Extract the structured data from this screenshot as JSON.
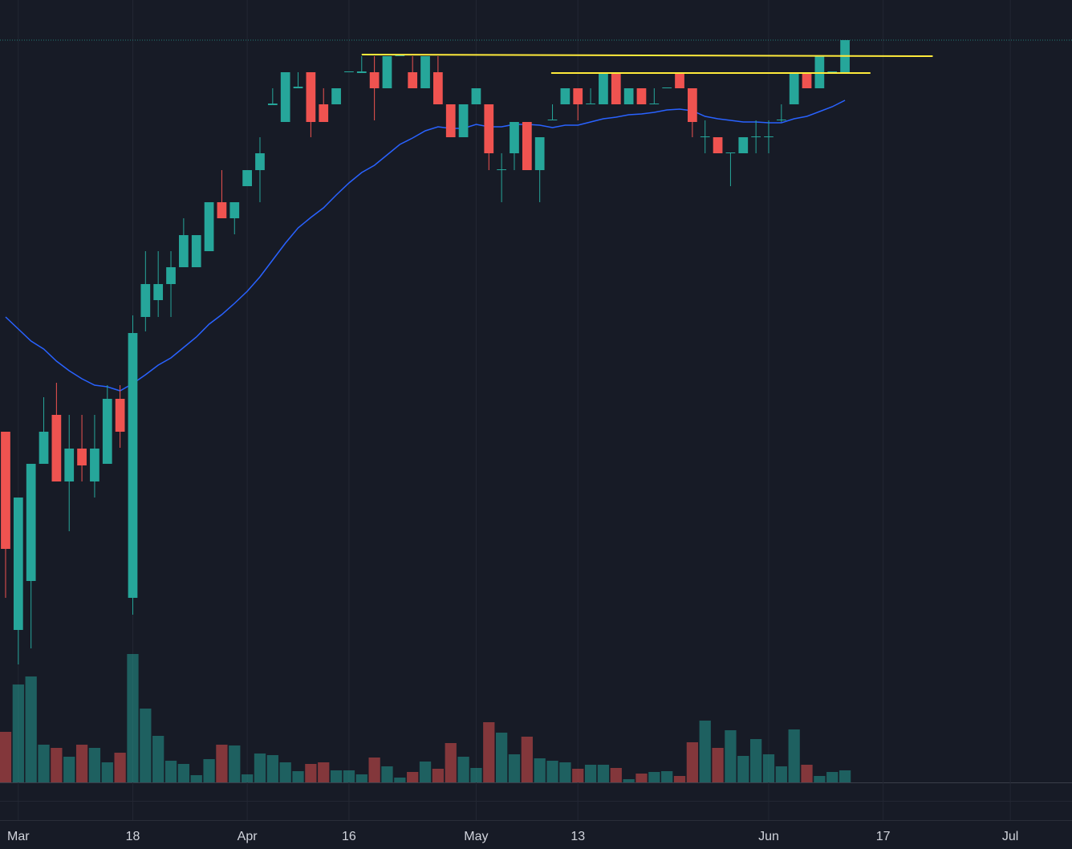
{
  "chart_data": {
    "type": "candlestick",
    "xlim": [
      -0.44,
      83.85
    ],
    "ylim": [
      0,
      1000
    ],
    "vlim": [
      0,
      200
    ],
    "xticks": [
      {
        "value": 1,
        "label": "Mar"
      },
      {
        "value": 10,
        "label": "18"
      },
      {
        "value": 19,
        "label": "Apr"
      },
      {
        "value": 27,
        "label": "16"
      },
      {
        "value": 37,
        "label": "May"
      },
      {
        "value": 45,
        "label": "13"
      },
      {
        "value": 60,
        "label": "Jun"
      },
      {
        "value": 69,
        "label": "17"
      },
      {
        "value": 79,
        "label": "Jul"
      }
    ],
    "up_color": "#26a69a",
    "down_color": "#ef5350",
    "open": [
      462,
      215,
      276,
      422,
      483,
      400,
      441,
      400,
      422,
      503,
      255,
      605,
      626,
      646,
      667,
      667,
      687,
      748,
      728,
      768,
      788,
      869,
      848,
      890,
      910,
      870,
      870,
      910,
      909,
      910,
      890,
      930,
      910,
      890,
      910,
      870,
      829,
      870,
      870,
      788,
      809,
      848,
      788,
      850,
      870,
      890,
      870,
      870,
      910,
      870,
      890,
      870,
      890,
      910,
      890,
      829,
      829,
      809,
      809,
      829,
      829,
      850,
      870,
      910,
      890,
      910,
      910
    ],
    "high": [
      462,
      380,
      422,
      505,
      523,
      483,
      483,
      483,
      520,
      520,
      607,
      687,
      687,
      687,
      728,
      707,
      748,
      788,
      748,
      788,
      829,
      890,
      910,
      910,
      910,
      890,
      890,
      911,
      930,
      930,
      930,
      931,
      930,
      930,
      930,
      870,
      870,
      890,
      870,
      809,
      848,
      848,
      829,
      870,
      890,
      890,
      890,
      910,
      910,
      890,
      890,
      890,
      891,
      910,
      890,
      850,
      829,
      810,
      829,
      850,
      850,
      870,
      910,
      910,
      930,
      911,
      950
    ],
    "low": [
      255,
      172,
      192,
      422,
      400,
      338,
      400,
      380,
      422,
      442,
      234,
      587,
      605,
      605,
      667,
      667,
      687,
      728,
      708,
      768,
      748,
      869,
      848,
      890,
      829,
      848,
      870,
      910,
      909,
      850,
      890,
      930,
      890,
      890,
      870,
      829,
      829,
      870,
      788,
      748,
      788,
      788,
      748,
      850,
      870,
      850,
      870,
      870,
      870,
      870,
      870,
      870,
      890,
      890,
      829,
      809,
      809,
      768,
      809,
      809,
      809,
      848,
      870,
      890,
      890,
      910,
      910
    ],
    "close": [
      316,
      380,
      422,
      462,
      400,
      441,
      420,
      441,
      503,
      462,
      585,
      646,
      646,
      667,
      707,
      707,
      748,
      728,
      748,
      788,
      809,
      871,
      910,
      892,
      848,
      848,
      890,
      911,
      911,
      890,
      930,
      931,
      890,
      930,
      870,
      829,
      870,
      890,
      809,
      789,
      848,
      788,
      829,
      851,
      890,
      870,
      871,
      910,
      870,
      890,
      870,
      871,
      891,
      890,
      848,
      830,
      809,
      810,
      829,
      830,
      830,
      851,
      910,
      890,
      930,
      911,
      950
    ],
    "volume": [
      63,
      122,
      132,
      47,
      43,
      32,
      47,
      43,
      25,
      37,
      160,
      92,
      58,
      27,
      23,
      9,
      29,
      47,
      46,
      10,
      36,
      34,
      25,
      14,
      23,
      25,
      15,
      15,
      10,
      31,
      20,
      6,
      13,
      26,
      17,
      49,
      32,
      18,
      75,
      62,
      35,
      57,
      30,
      27,
      25,
      17,
      22,
      22,
      18,
      4,
      11,
      13,
      14,
      8,
      50,
      77,
      43,
      65,
      33,
      54,
      35,
      20,
      66,
      22,
      8,
      13,
      15
    ],
    "ma_values": [
      605,
      590,
      575,
      565,
      550,
      538,
      528,
      520,
      518,
      513,
      522,
      533,
      545,
      554,
      567,
      580,
      596,
      608,
      622,
      637,
      655,
      676,
      697,
      716,
      729,
      741,
      757,
      772,
      785,
      794,
      807,
      820,
      828,
      837,
      842,
      840,
      840,
      845,
      842,
      842,
      845,
      845,
      844,
      841,
      844,
      844,
      848,
      852,
      854,
      857,
      858,
      860,
      863,
      864,
      862,
      855,
      852,
      850,
      848,
      848,
      847,
      847,
      852,
      855,
      861,
      867,
      875
    ],
    "ma_color": "#2962ff",
    "trend_lines": [
      {
        "x": [
          28,
          72.9
        ],
        "values": [
          932,
          930
        ],
        "color": "#ffeb3b"
      },
      {
        "x": [
          42.9,
          68
        ],
        "values": [
          909,
          909
        ],
        "color": "#ffeb3b"
      }
    ]
  }
}
